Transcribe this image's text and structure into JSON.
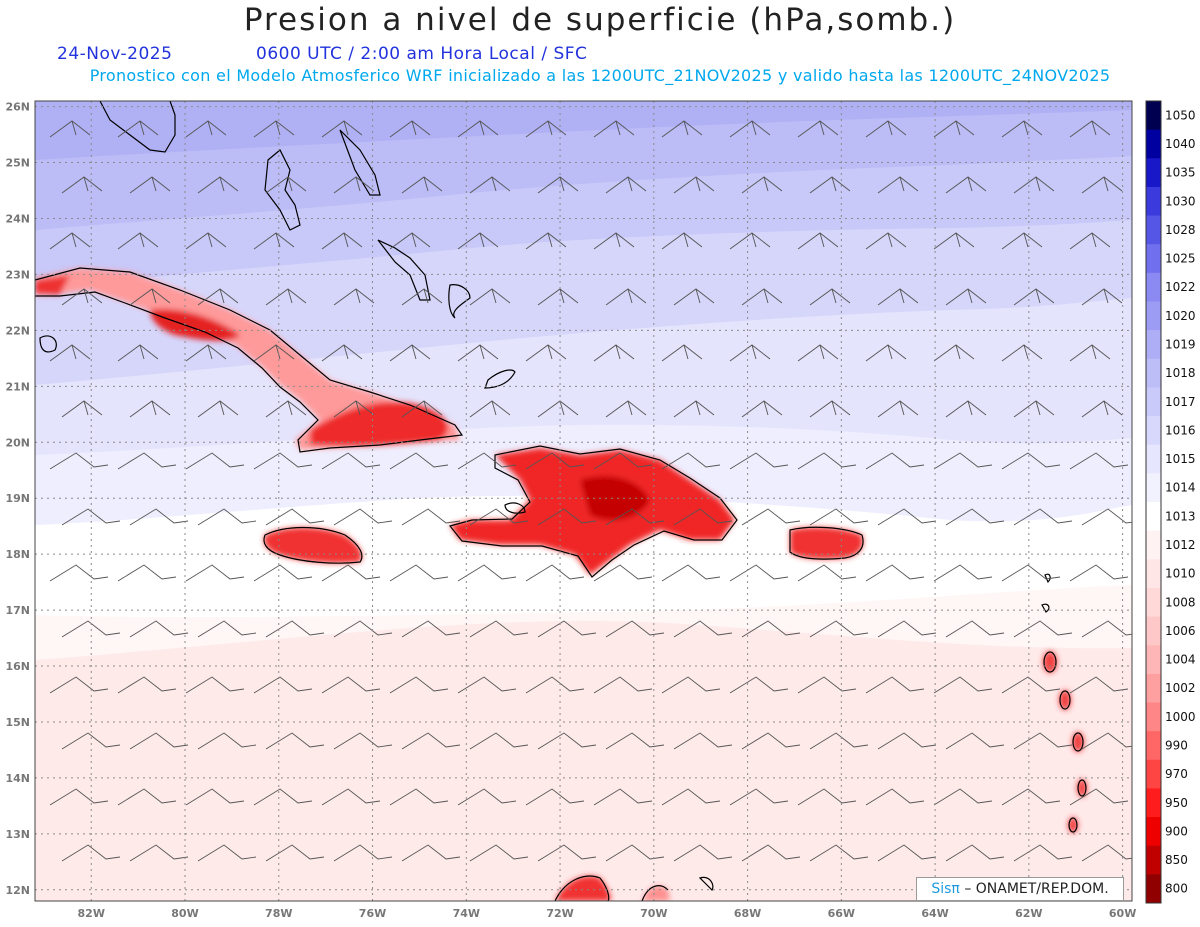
{
  "title": "Presion a nivel de superficie (hPa,somb.)",
  "date": "24-Nov-2025",
  "valid_time": "0600 UTC / 2:00 am Hora Local / SFC",
  "model_info": "Pronostico con el Modelo Atmosferico WRF inicializado a las 1200UTC_21NOV2025 y valido hasta las  1200UTC_24NOV2025",
  "map": {
    "lon_range": [
      -83.2,
      -59.8
    ],
    "lat_range": [
      11.8,
      26.1
    ],
    "lon_ticks": [
      "82W",
      "80W",
      "78W",
      "76W",
      "74W",
      "72W",
      "70W",
      "68W",
      "66W",
      "64W",
      "62W",
      "60W"
    ],
    "lon_tick_values": [
      -82,
      -80,
      -78,
      -76,
      -74,
      -72,
      -70,
      -68,
      -66,
      -64,
      -62,
      -60
    ],
    "lat_ticks": [
      "26N",
      "25N",
      "24N",
      "23N",
      "22N",
      "21N",
      "20N",
      "19N",
      "18N",
      "17N",
      "16N",
      "15N",
      "14N",
      "13N",
      "12N"
    ],
    "lat_tick_values": [
      26,
      25,
      24,
      23,
      22,
      21,
      20,
      19,
      18,
      17,
      16,
      15,
      14,
      13,
      12
    ],
    "grid": "dotted"
  },
  "colorbar": {
    "labels": [
      "1050",
      "1040",
      "1035",
      "1030",
      "1028",
      "1025",
      "1022",
      "1020",
      "1019",
      "1018",
      "1017",
      "1016",
      "1015",
      "1014",
      "1013",
      "1012",
      "1010",
      "1008",
      "1006",
      "1004",
      "1002",
      "1000",
      "990",
      "970",
      "950",
      "900",
      "850",
      "800"
    ],
    "colors": [
      "#000050",
      "#0000a0",
      "#1818c8",
      "#3a3add",
      "#5656e6",
      "#7070ee",
      "#8a8af2",
      "#9c9cf4",
      "#aeaef6",
      "#bdbdf8",
      "#cacafa",
      "#d8d8fc",
      "#e6e6fe",
      "#f2f2ff",
      "#ffffff",
      "#fff2f2",
      "#ffe6e6",
      "#ffd8d8",
      "#ffc8c8",
      "#ffb6b6",
      "#ffa0a0",
      "#ff8686",
      "#ff6666",
      "#ff4444",
      "#ff1c1c",
      "#ee0000",
      "#c00000",
      "#900000"
    ]
  },
  "credit": {
    "logo": "Sisπ",
    "text": "– ONAMET/REP.DOM."
  }
}
